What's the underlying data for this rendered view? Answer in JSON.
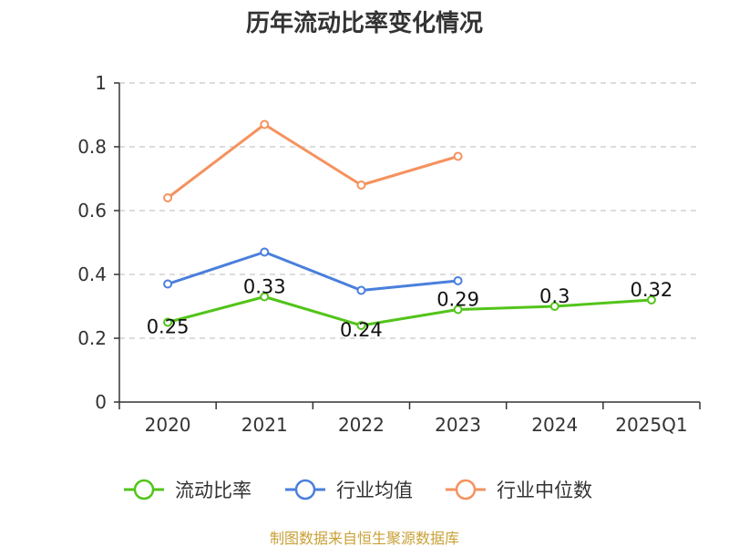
{
  "chart_data": {
    "type": "line",
    "title": "历年流动比率变化情况",
    "categories": [
      "2020",
      "2021",
      "2022",
      "2023",
      "2024",
      "2025Q1"
    ],
    "ylim": [
      0,
      1
    ],
    "yticks": [
      "0",
      "0.2",
      "0.4",
      "0.6",
      "0.8",
      "1"
    ],
    "grid": true,
    "legend_position": "bottom",
    "series": [
      {
        "name": "流动比率",
        "color": "#52c41a",
        "values": [
          0.25,
          0.33,
          0.24,
          0.29,
          0.3,
          0.32
        ],
        "labels": [
          "0.25",
          "0.33",
          "0.24",
          "0.29",
          "0.3",
          "0.32"
        ]
      },
      {
        "name": "行业均值",
        "color": "#4a7fdc",
        "values": [
          0.37,
          0.47,
          0.35,
          0.38,
          null,
          null
        ]
      },
      {
        "name": "行业中位数",
        "color": "#f5925e",
        "values": [
          0.64,
          0.87,
          0.68,
          0.77,
          null,
          null
        ]
      }
    ],
    "source": "制图数据来自恒生聚源数据库"
  }
}
